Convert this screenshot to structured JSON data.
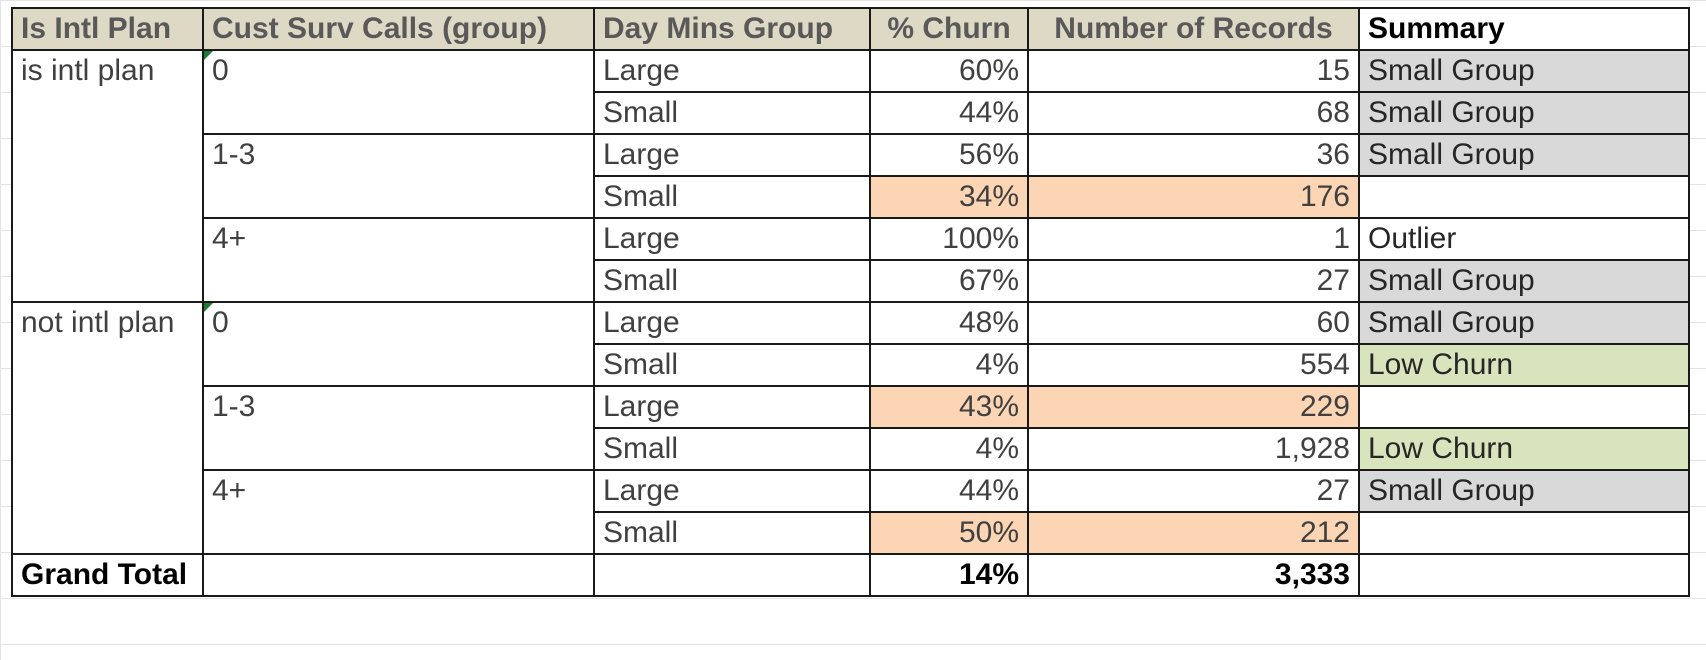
{
  "headers": {
    "intl_plan": "Is Intl Plan",
    "cust_calls": "Cust Surv Calls (group)",
    "day_mins": "Day Mins Group",
    "churn": "% Churn",
    "records": "Number of Records",
    "summary": "Summary"
  },
  "groups": [
    {
      "plan": "is intl plan",
      "calls": [
        {
          "label": "0",
          "rows": [
            {
              "mins": "Large",
              "churn": "60%",
              "records": "15",
              "summary": "Small Group",
              "status": "small-group"
            },
            {
              "mins": "Small",
              "churn": "44%",
              "records": "68",
              "summary": "Small Group",
              "status": "small-group"
            }
          ]
        },
        {
          "label": "1-3",
          "rows": [
            {
              "mins": "Large",
              "churn": "56%",
              "records": "36",
              "summary": "Small Group",
              "status": "small-group"
            },
            {
              "mins": "Small",
              "churn": "34%",
              "records": "176",
              "summary": "",
              "status": "highlight"
            }
          ]
        },
        {
          "label": "4+",
          "rows": [
            {
              "mins": "Large",
              "churn": "100%",
              "records": "1",
              "summary": "Outlier",
              "status": "outlier"
            },
            {
              "mins": "Small",
              "churn": "67%",
              "records": "27",
              "summary": "Small Group",
              "status": "small-group"
            }
          ]
        }
      ]
    },
    {
      "plan": "not intl plan",
      "calls": [
        {
          "label": "0",
          "rows": [
            {
              "mins": "Large",
              "churn": "48%",
              "records": "60",
              "summary": "Small Group",
              "status": "small-group"
            },
            {
              "mins": "Small",
              "churn": "4%",
              "records": "554",
              "summary": "Low Churn",
              "status": "low-churn"
            }
          ]
        },
        {
          "label": "1-3",
          "rows": [
            {
              "mins": "Large",
              "churn": "43%",
              "records": "229",
              "summary": "",
              "status": "highlight"
            },
            {
              "mins": "Small",
              "churn": "4%",
              "records": "1,928",
              "summary": "Low Churn",
              "status": "low-churn"
            }
          ]
        },
        {
          "label": "4+",
          "rows": [
            {
              "mins": "Large",
              "churn": "44%",
              "records": "27",
              "summary": "Small Group",
              "status": "small-group"
            },
            {
              "mins": "Small",
              "churn": "50%",
              "records": "212",
              "summary": "",
              "status": "highlight"
            }
          ]
        }
      ]
    }
  ],
  "total": {
    "label": "Grand Total",
    "churn": "14%",
    "records": "3,333"
  },
  "colors": {
    "header_bg": "#ddd9c4",
    "highlight": "#fcd5b4",
    "small_group": "#d9d9d9",
    "low_churn": "#d8e4bc"
  }
}
